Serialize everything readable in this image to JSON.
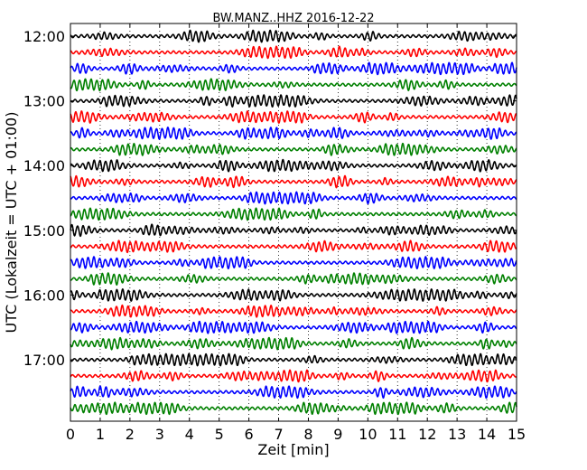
{
  "chart_data": {
    "type": "line",
    "title": "BW.MANZ..HHZ 2016-12-22",
    "xlabel": "Zeit  [min]",
    "ylabel": "UTC (Lokalzeit = UTC + 01:00)",
    "xlim": [
      0,
      15
    ],
    "x_ticks": [
      "0",
      "1",
      "2",
      "3",
      "4",
      "5",
      "6",
      "7",
      "8",
      "9",
      "10",
      "11",
      "12",
      "13",
      "14",
      "15"
    ],
    "y_ticks": [
      "12:00",
      "13:00",
      "14:00",
      "15:00",
      "16:00",
      "17:00"
    ],
    "traces_per_hour": 4,
    "trace_minutes": 15,
    "num_traces": 24,
    "trace_colors": [
      "#000000",
      "#ff0000",
      "#0000ff",
      "#008000"
    ],
    "grid": "vertical dotted at each minute"
  }
}
